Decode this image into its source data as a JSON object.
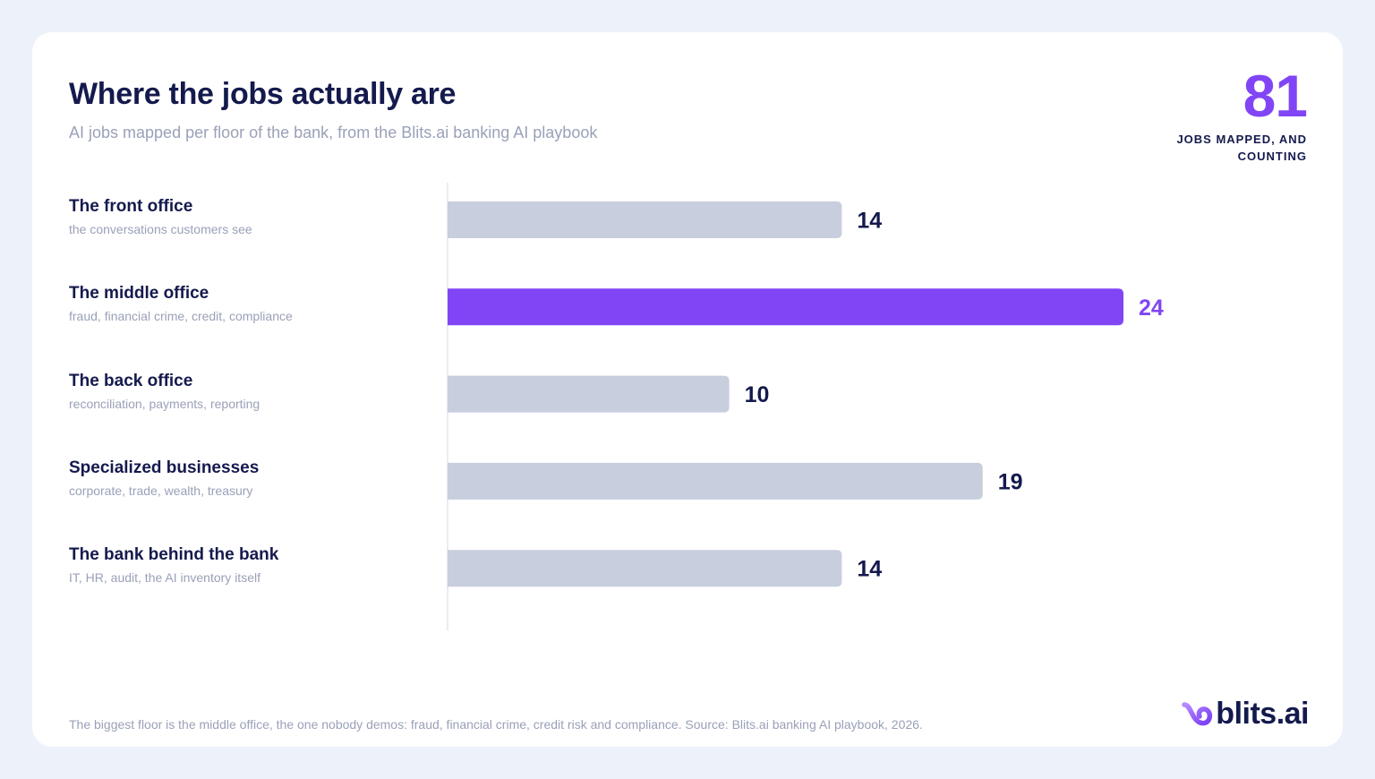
{
  "header": {
    "title": "Where the jobs actually are",
    "subtitle": "AI jobs mapped per floor of the bank, from the Blits.ai banking AI playbook"
  },
  "stat": {
    "number": "81",
    "caption": "JOBS MAPPED, AND COUNTING"
  },
  "chart_data": {
    "type": "bar",
    "orientation": "horizontal",
    "categories": [
      "The front office",
      "The middle office",
      "The back office",
      "Specialized businesses",
      "The bank behind the bank"
    ],
    "descriptions": [
      "the conversations customers see",
      "fraud, financial crime, credit, compliance",
      "reconciliation, payments, reporting",
      "corporate, trade, wealth, treasury",
      "IT, HR, audit, the AI inventory itself"
    ],
    "values": [
      14,
      24,
      10,
      19,
      14
    ],
    "highlight_index": 1,
    "colors": {
      "default": "#c8cedd",
      "highlight": "#8145f5",
      "label": "#141a4d"
    },
    "xlim": [
      0,
      24
    ]
  },
  "footnote": "The biggest floor is the middle office, the one nobody demos: fraud, financial crime, credit risk and compliance. Source: Blits.ai banking AI playbook, 2026.",
  "logo": {
    "text": "blits.ai",
    "icon": "blits-logo-icon"
  }
}
